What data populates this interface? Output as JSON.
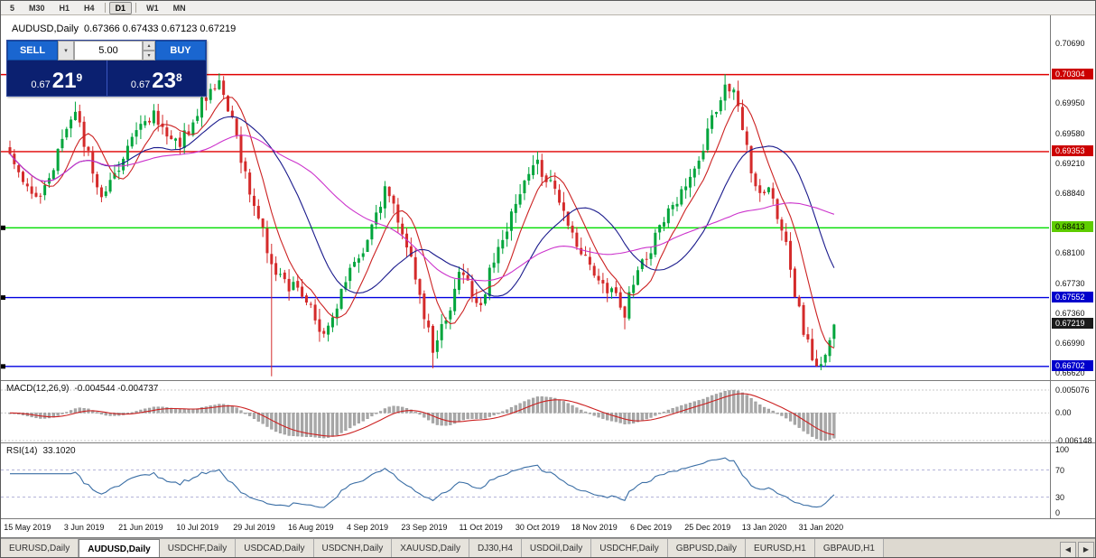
{
  "toolbar": {
    "items": [
      "5",
      "M30",
      "H1",
      "H4",
      "|",
      "D1",
      "|",
      "W1",
      "MN"
    ],
    "active": "D1"
  },
  "chart_header": {
    "title": "AUDUSD,Daily",
    "ohlc": "0.67366 0.67433 0.67123 0.67219"
  },
  "trade_panel": {
    "sell_label": "SELL",
    "buy_label": "BUY",
    "volume": "5.00",
    "sell_price": {
      "prefix": "0.67",
      "big": "21",
      "sup": "9"
    },
    "buy_price": {
      "prefix": "0.67",
      "big": "23",
      "sup": "8"
    },
    "icons": {
      "dropdown": "▾",
      "up": "▴",
      "down": "▾"
    }
  },
  "chart_data": {
    "type": "candlestick",
    "symbol": "AUDUSD",
    "timeframe": "Daily",
    "ohlc_display": {
      "open": "0.67366",
      "high": "0.67433",
      "low": "0.67123",
      "close": "0.67219"
    },
    "n_candles": 190,
    "seed": 11,
    "up_color": "#00a53c",
    "down_color": "#d42a2a",
    "anchors": [
      [
        0,
        0.693
      ],
      [
        3,
        0.6905
      ],
      [
        6,
        0.6872
      ],
      [
        9,
        0.69
      ],
      [
        12,
        0.6955
      ],
      [
        15,
        0.6985
      ],
      [
        18,
        0.693
      ],
      [
        21,
        0.688
      ],
      [
        24,
        0.6905
      ],
      [
        27,
        0.694
      ],
      [
        30,
        0.6965
      ],
      [
        33,
        0.6985
      ],
      [
        36,
        0.6958
      ],
      [
        39,
        0.6945
      ],
      [
        42,
        0.6975
      ],
      [
        45,
        0.7005
      ],
      [
        48,
        0.7028
      ],
      [
        51,
        0.6975
      ],
      [
        54,
        0.6905
      ],
      [
        57,
        0.6855
      ],
      [
        60,
        0.6795
      ],
      [
        63,
        0.6772
      ],
      [
        66,
        0.6765
      ],
      [
        69,
        0.674
      ],
      [
        72,
        0.6706
      ],
      [
        75,
        0.6745
      ],
      [
        78,
        0.679
      ],
      [
        81,
        0.6815
      ],
      [
        84,
        0.6862
      ],
      [
        86,
        0.6888
      ],
      [
        88,
        0.6868
      ],
      [
        91,
        0.682
      ],
      [
        94,
        0.6758
      ],
      [
        97,
        0.6692
      ],
      [
        100,
        0.6726
      ],
      [
        103,
        0.6786
      ],
      [
        106,
        0.676
      ],
      [
        108,
        0.6744
      ],
      [
        110,
        0.679
      ],
      [
        113,
        0.6826
      ],
      [
        116,
        0.687
      ],
      [
        119,
        0.6906
      ],
      [
        121,
        0.692
      ],
      [
        124,
        0.6895
      ],
      [
        127,
        0.6864
      ],
      [
        130,
        0.682
      ],
      [
        133,
        0.679
      ],
      [
        136,
        0.677
      ],
      [
        139,
        0.6754
      ],
      [
        141,
        0.6738
      ],
      [
        144,
        0.6786
      ],
      [
        147,
        0.6816
      ],
      [
        150,
        0.685
      ],
      [
        153,
        0.6876
      ],
      [
        156,
        0.69
      ],
      [
        159,
        0.694
      ],
      [
        162,
        0.699
      ],
      [
        164,
        0.702
      ],
      [
        166,
        0.7014
      ],
      [
        168,
        0.6962
      ],
      [
        170,
        0.6914
      ],
      [
        172,
        0.688
      ],
      [
        174,
        0.689
      ],
      [
        176,
        0.6854
      ],
      [
        178,
        0.6824
      ],
      [
        180,
        0.676
      ],
      [
        182,
        0.6714
      ],
      [
        184,
        0.6684
      ],
      [
        186,
        0.6672
      ],
      [
        188,
        0.6706
      ],
      [
        189,
        0.67219
      ]
    ],
    "spikes_high": [
      [
        15,
        0.6997
      ],
      [
        48,
        0.7032
      ],
      [
        121,
        0.6928
      ],
      [
        164,
        0.7031
      ]
    ],
    "spikes_low": [
      [
        60,
        0.6658
      ],
      [
        97,
        0.6668
      ],
      [
        141,
        0.6716
      ],
      [
        186,
        0.6668
      ]
    ],
    "y_axis": {
      "ticks": [
        "0.70690",
        "0.69950",
        "0.69580",
        "0.69210",
        "0.68840",
        "0.68100",
        "0.67730",
        "0.67360",
        "0.66990",
        "0.66620"
      ],
      "top_price": 0.7069,
      "tick_step": 0.0037
    },
    "x_labels": [
      "15 May 2019",
      "3 Jun 2019",
      "21 Jun 2019",
      "10 Jul 2019",
      "29 Jul 2019",
      "16 Aug 2019",
      "4 Sep 2019",
      "23 Sep 2019",
      "11 Oct 2019",
      "30 Oct 2019",
      "18 Nov 2019",
      "6 Dec 2019",
      "25 Dec 2019",
      "13 Jan 2020",
      "31 Jan 2020"
    ],
    "levels": [
      {
        "price": 0.70304,
        "label": "0.70304",
        "line_color": "#e00000",
        "label_bg": "#cc0000",
        "label_fg": "#ffffff",
        "marker": false
      },
      {
        "price": 0.69353,
        "label": "0.69353",
        "line_color": "#e00000",
        "label_bg": "#cc0000",
        "label_fg": "#ffffff",
        "marker": false
      },
      {
        "price": 0.68413,
        "label": "0.68413",
        "line_color": "#00dd00",
        "label_bg": "#5ecc00",
        "label_fg": "#000000",
        "marker": true
      },
      {
        "price": 0.67552,
        "label": "0.67552",
        "line_color": "#0000e0",
        "label_bg": "#0000cc",
        "label_fg": "#ffffff",
        "marker": true
      },
      {
        "price": 0.66702,
        "label": "0.66702",
        "line_color": "#0000e0",
        "label_bg": "#0000cc",
        "label_fg": "#ffffff",
        "marker": true
      }
    ],
    "current_price": {
      "price": 0.67219,
      "label": "0.67219",
      "label_bg": "#1a1a1a",
      "label_fg": "#ffffff"
    },
    "moving_averages": [
      {
        "period": 8,
        "color": "#cc2222"
      },
      {
        "period": 21,
        "color": "#1a1a8c"
      },
      {
        "period": 44,
        "color": "#cc33cc"
      }
    ]
  },
  "macd": {
    "label": "MACD(12,26,9)",
    "values": "-0.004544 -0.004737",
    "ticks": [
      "0.005076",
      "0.00",
      "-0.006148"
    ],
    "params": {
      "fast": 12,
      "slow": 26,
      "signal": 9
    },
    "histogram_color": "#a8a8a8",
    "signal_color": "#cc2222"
  },
  "rsi": {
    "label": "RSI(14)",
    "value": "33.1020",
    "period": 14,
    "ticks": [
      "100",
      "70",
      "30",
      "0"
    ],
    "levels": [
      70,
      30
    ],
    "line_color": "#3a6ea5"
  },
  "tab_bar": {
    "items": [
      "EURUSD,Daily",
      "AUDUSD,Daily",
      "USDCHF,Daily",
      "USDCAD,Daily",
      "USDCNH,Daily",
      "XAUUSD,Daily",
      "DJ30,H4",
      "USDOil,Daily",
      "USDCHF,Daily",
      "GBPUSD,Daily",
      "EURUSD,H1",
      "GBPAUD,H1"
    ],
    "active_index": 1,
    "scroll_left": "◀",
    "scroll_right": "▶"
  }
}
